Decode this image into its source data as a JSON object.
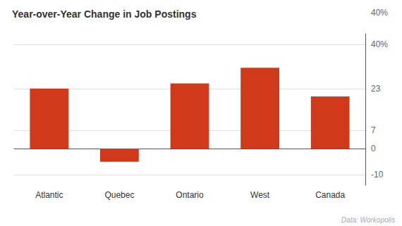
{
  "chart_data": {
    "type": "bar",
    "title": "Year-over-Year Change in Job Postings",
    "categories": [
      "Atlantic",
      "Quebec",
      "Ontario",
      "West",
      "Canada"
    ],
    "values": [
      23,
      -5,
      25,
      31,
      20
    ],
    "color": "#d0391a",
    "ylim": [
      -14,
      44
    ],
    "yticks": [
      -10,
      0,
      7,
      23,
      {
        "value": 40,
        "label": "40%"
      }
    ],
    "grid": true,
    "annotations": [
      "40%",
      "Data: Workopolis"
    ]
  }
}
